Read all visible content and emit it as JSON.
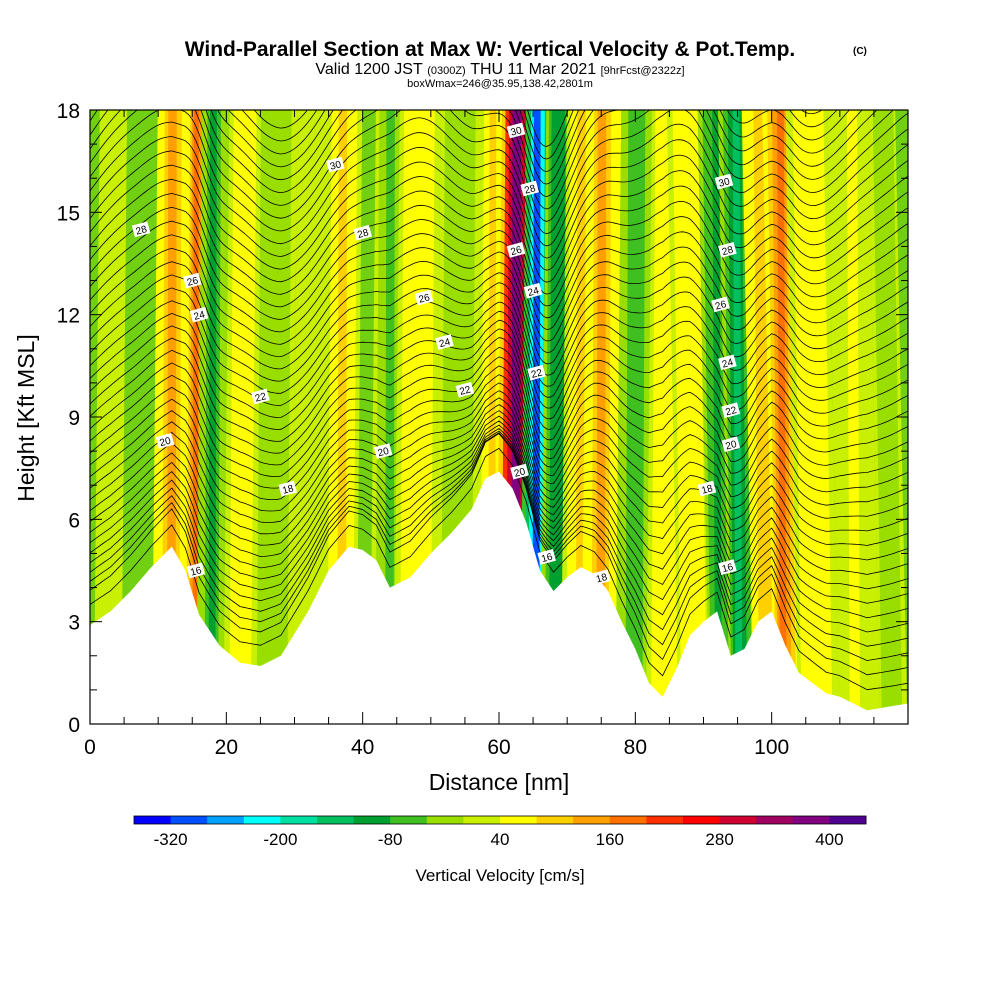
{
  "chart_data": {
    "type": "heatmap",
    "title": "Wind-Parallel Section at Max W: Vertical Velocity & Pot.Temp.",
    "title_mark": "(C)",
    "subtitle_line1": {
      "part1": "Valid 1200 JST",
      "part2": "(0300Z)",
      "part3": "THU 11 Mar 2021",
      "part4": "[9hrFcst@2322z]"
    },
    "subtitle_line2": "boxWmax=246@35.95,138.42,2801m",
    "xlabel": "Distance [nm]",
    "ylabel": "Height [Kft MSL]",
    "xlim": [
      0,
      120
    ],
    "ylim": [
      0,
      18
    ],
    "x_ticks": [
      "0",
      "20",
      "40",
      "60",
      "80",
      "100"
    ],
    "y_ticks": [
      "0",
      "3",
      "6",
      "9",
      "12",
      "15",
      "18"
    ],
    "colorbar": {
      "title": "Vertical Velocity [cm/s]",
      "labels": [
        "-320",
        "-200",
        "-80",
        "40",
        "160",
        "280",
        "400"
      ],
      "colors": [
        "#0000ff",
        "#0050ff",
        "#00a0ff",
        "#00ffff",
        "#00e0a0",
        "#00c060",
        "#00a030",
        "#40c020",
        "#9ade00",
        "#c8f000",
        "#ffff00",
        "#ffd000",
        "#ffa000",
        "#ff7000",
        "#ff3000",
        "#ff0000",
        "#d00030",
        "#a00060",
        "#800080",
        "#500090"
      ]
    },
    "terrain_height": {
      "x": [
        0,
        3,
        6,
        9,
        12,
        14,
        16,
        19,
        22,
        25,
        28,
        32,
        35,
        38,
        40,
        42,
        44,
        47,
        50,
        53,
        56,
        58,
        60,
        62,
        64,
        66,
        68,
        70,
        72,
        74,
        76,
        78,
        80,
        82,
        84,
        86,
        88,
        90,
        92,
        94,
        96,
        98,
        100,
        102,
        104,
        106,
        108,
        110,
        112,
        114,
        117,
        120
      ],
      "y": [
        2.9,
        3.3,
        3.9,
        4.6,
        5.2,
        4.5,
        3.2,
        2.3,
        1.8,
        1.7,
        2.0,
        3.3,
        4.5,
        5.2,
        5.1,
        4.8,
        4.0,
        4.3,
        5.0,
        5.6,
        6.3,
        7.2,
        7.4,
        6.9,
        5.9,
        4.5,
        3.9,
        4.3,
        4.6,
        4.4,
        3.9,
        3.0,
        2.2,
        1.2,
        0.8,
        1.6,
        2.6,
        3.0,
        3.3,
        2.0,
        2.2,
        3.0,
        3.3,
        2.3,
        1.5,
        1.2,
        0.9,
        0.8,
        0.6,
        0.4,
        0.5,
        0.6
      ]
    },
    "vertical_velocity_bands": [
      {
        "x": 3,
        "width": 2,
        "w": 20
      },
      {
        "x": 12,
        "width": 2.5,
        "w": 120
      },
      {
        "x": 15.5,
        "width": 1.5,
        "w": 190
      },
      {
        "x": 18,
        "width": 2,
        "w": -90
      },
      {
        "x": 23,
        "width": 3,
        "w": 70
      },
      {
        "x": 27,
        "width": 3,
        "w": -40
      },
      {
        "x": 33,
        "width": 3,
        "w": 30
      },
      {
        "x": 37,
        "width": 2.5,
        "w": 80
      },
      {
        "x": 44,
        "width": 2.5,
        "w": -60
      },
      {
        "x": 48,
        "width": 3,
        "w": 70
      },
      {
        "x": 54,
        "width": 3,
        "w": -30
      },
      {
        "x": 59,
        "width": 2,
        "w": 80
      },
      {
        "x": 62.5,
        "width": 2.5,
        "w": 380
      },
      {
        "x": 65.5,
        "width": 2,
        "w": -310
      },
      {
        "x": 68.5,
        "width": 2,
        "w": -120
      },
      {
        "x": 72,
        "width": 2.5,
        "w": 90
      },
      {
        "x": 75,
        "width": 2.5,
        "w": 130
      },
      {
        "x": 80,
        "width": 2.5,
        "w": -70
      },
      {
        "x": 84.5,
        "width": 2.5,
        "w": 60
      },
      {
        "x": 88,
        "width": 2.5,
        "w": 70
      },
      {
        "x": 92,
        "width": 2,
        "w": -110
      },
      {
        "x": 95,
        "width": 2,
        "w": -160
      },
      {
        "x": 99,
        "width": 2.5,
        "w": 110
      },
      {
        "x": 101.5,
        "width": 2,
        "w": 190
      },
      {
        "x": 106,
        "width": 3,
        "w": 60
      },
      {
        "x": 112,
        "width": 3,
        "w": 40
      },
      {
        "x": 117,
        "width": 2,
        "w": -40
      }
    ],
    "theta_contour_labels": [
      {
        "x": 7.5,
        "y": 14.5,
        "text": "28"
      },
      {
        "x": 36,
        "y": 16.4,
        "text": "30"
      },
      {
        "x": 40,
        "y": 14.4,
        "text": "28"
      },
      {
        "x": 15,
        "y": 13.0,
        "text": "26"
      },
      {
        "x": 16,
        "y": 12.0,
        "text": "24"
      },
      {
        "x": 11,
        "y": 8.3,
        "text": "20"
      },
      {
        "x": 25,
        "y": 9.6,
        "text": "22"
      },
      {
        "x": 29,
        "y": 6.9,
        "text": "18"
      },
      {
        "x": 15.5,
        "y": 4.5,
        "text": "16"
      },
      {
        "x": 49,
        "y": 12.5,
        "text": "26"
      },
      {
        "x": 52,
        "y": 11.2,
        "text": "24"
      },
      {
        "x": 55,
        "y": 9.8,
        "text": "22"
      },
      {
        "x": 43,
        "y": 8.0,
        "text": "20"
      },
      {
        "x": 62.5,
        "y": 17.4,
        "text": "30"
      },
      {
        "x": 64.5,
        "y": 15.7,
        "text": "28"
      },
      {
        "x": 62.5,
        "y": 13.9,
        "text": "26"
      },
      {
        "x": 65,
        "y": 12.7,
        "text": "24"
      },
      {
        "x": 65.5,
        "y": 10.3,
        "text": "22"
      },
      {
        "x": 63,
        "y": 7.4,
        "text": "20"
      },
      {
        "x": 67,
        "y": 4.9,
        "text": "16"
      },
      {
        "x": 75,
        "y": 4.3,
        "text": "18"
      },
      {
        "x": 93,
        "y": 15.9,
        "text": "30"
      },
      {
        "x": 93.5,
        "y": 13.9,
        "text": "28"
      },
      {
        "x": 92.5,
        "y": 12.3,
        "text": "26"
      },
      {
        "x": 93.5,
        "y": 10.6,
        "text": "24"
      },
      {
        "x": 94,
        "y": 9.2,
        "text": "22"
      },
      {
        "x": 94,
        "y": 8.2,
        "text": "20"
      },
      {
        "x": 90.5,
        "y": 6.9,
        "text": "18"
      },
      {
        "x": 93.5,
        "y": 4.6,
        "text": "16"
      }
    ]
  }
}
